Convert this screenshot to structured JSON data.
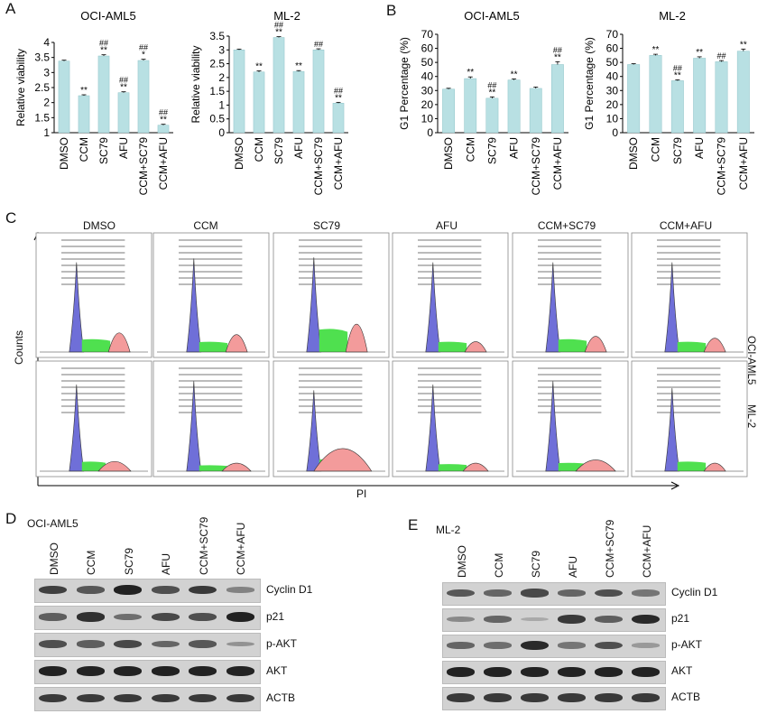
{
  "panels": {
    "A": "A",
    "B": "B",
    "C": "C",
    "D": "D",
    "E": "E"
  },
  "colors": {
    "bar": "#b8e0e3",
    "bar_stroke": "#8fc4c8",
    "g1": "#6f6fd8",
    "s": "#4fe04f",
    "g2": "#f39b9b"
  },
  "chart_data": [
    {
      "type": "bar",
      "title": "OCI-AML5",
      "xlabel": "",
      "ylabel": "Relative viability",
      "ylim": [
        1,
        4
      ],
      "yticks": [
        "1",
        "1.5",
        "2",
        "2.5",
        "3",
        "3.5",
        "4"
      ],
      "categories": [
        "DMSO",
        "CCM",
        "SC79",
        "AFU",
        "CCM+SC79",
        "CCM+AFU"
      ],
      "values": [
        3.38,
        2.23,
        3.55,
        2.33,
        3.4,
        1.25
      ],
      "errors": [
        0.03,
        0.03,
        0.04,
        0.03,
        0.04,
        0.03
      ],
      "annotations": [
        [
          "",
          ""
        ],
        [
          "",
          "**"
        ],
        [
          "##",
          "**"
        ],
        [
          "##",
          "**"
        ],
        [
          "##",
          "*"
        ],
        [
          "##",
          "**"
        ]
      ]
    },
    {
      "type": "bar",
      "title": "ML-2",
      "xlabel": "",
      "ylabel": "Relative viability",
      "ylim": [
        0,
        3.5
      ],
      "yticks": [
        "0",
        "0.5",
        "1",
        "1.5",
        "2",
        "2.5",
        "3",
        "3.5"
      ],
      "categories": [
        "DMSO",
        "CCM",
        "SC79",
        "AFU",
        "CCM+SC79",
        "CCM+AFU"
      ],
      "values": [
        3.0,
        2.2,
        3.45,
        2.22,
        3.0,
        1.07
      ],
      "errors": [
        0.03,
        0.04,
        0.03,
        0.03,
        0.04,
        0.03
      ],
      "annotations": [
        [
          "",
          ""
        ],
        [
          "",
          "**"
        ],
        [
          "##",
          "**"
        ],
        [
          "",
          "**"
        ],
        [
          "##",
          ""
        ],
        [
          "##",
          "**"
        ]
      ]
    },
    {
      "type": "bar",
      "title": "OCI-AML5",
      "xlabel": "",
      "ylabel": "G1 Percentage (%)",
      "ylim": [
        0,
        70
      ],
      "yticks": [
        "0",
        "10",
        "20",
        "30",
        "40",
        "50",
        "60",
        "70"
      ],
      "categories": [
        "DMSO",
        "CCM",
        "SC79",
        "AFU",
        "CCM+SC79",
        "CCM+AFU"
      ],
      "values": [
        31,
        38.5,
        24.5,
        37.5,
        31.5,
        48.5
      ],
      "errors": [
        0.6,
        1.2,
        1.0,
        0.8,
        1.0,
        2.0
      ],
      "annotations": [
        [
          "",
          ""
        ],
        [
          "",
          "**"
        ],
        [
          "##",
          "**"
        ],
        [
          "",
          "**"
        ],
        [
          "",
          ""
        ],
        [
          "##",
          "**"
        ]
      ]
    },
    {
      "type": "bar",
      "title": "ML-2",
      "xlabel": "",
      "ylabel": "G1 Percentage (%)",
      "ylim": [
        0,
        70
      ],
      "yticks": [
        "0",
        "10",
        "20",
        "30",
        "40",
        "50",
        "60",
        "70"
      ],
      "categories": [
        "DMSO",
        "CCM",
        "SC79",
        "AFU",
        "CCM+SC79",
        "CCM+AFU"
      ],
      "values": [
        48.5,
        55,
        37,
        53,
        50.5,
        58
      ],
      "errors": [
        0.6,
        0.8,
        0.6,
        1.0,
        0.8,
        1.5
      ],
      "annotations": [
        [
          "",
          ""
        ],
        [
          "",
          "**"
        ],
        [
          "##",
          "**"
        ],
        [
          "",
          "**"
        ],
        [
          "##",
          ""
        ],
        [
          "",
          "**"
        ]
      ]
    }
  ],
  "flow": {
    "conditions": [
      "DMSO",
      "CCM",
      "SC79",
      "AFU",
      "CCM+SC79",
      "CCM+AFU"
    ],
    "rows": [
      "OCI-AML5",
      "ML-2"
    ],
    "y_axis": "Counts",
    "x_axis": "PI"
  },
  "westerns": [
    {
      "cell_line": "OCI-AML5",
      "lanes": [
        "DMSO",
        "CCM",
        "SC79",
        "AFU",
        "CCM+SC79",
        "CCM+AFU"
      ],
      "proteins": [
        "Cyclin D1",
        "p21",
        "p-AKT",
        "AKT",
        "ACTB"
      ]
    },
    {
      "cell_line": "ML-2",
      "lanes": [
        "DMSO",
        "CCM",
        "SC79",
        "AFU",
        "CCM+SC79",
        "CCM+AFU"
      ],
      "proteins": [
        "Cyclin D1",
        "p21",
        "p-AKT",
        "AKT",
        "ACTB"
      ]
    }
  ],
  "band_intensities": [
    [
      [
        0.8,
        0.65,
        1.0,
        0.7,
        0.85,
        0.35
      ],
      [
        0.6,
        0.9,
        0.5,
        0.75,
        0.7,
        1.0
      ],
      [
        0.7,
        0.6,
        0.75,
        0.55,
        0.65,
        0.25
      ],
      [
        1,
        1,
        1,
        1,
        1,
        1
      ],
      [
        0.85,
        0.85,
        0.85,
        0.85,
        0.85,
        0.85
      ]
    ],
    [
      [
        0.65,
        0.55,
        0.75,
        0.55,
        0.7,
        0.45
      ],
      [
        0.3,
        0.55,
        0.1,
        0.85,
        0.6,
        0.95
      ],
      [
        0.55,
        0.5,
        0.95,
        0.45,
        0.7,
        0.2
      ],
      [
        1,
        1,
        1,
        1,
        1,
        1
      ],
      [
        0.85,
        0.85,
        0.85,
        0.85,
        0.85,
        0.85
      ]
    ]
  ]
}
